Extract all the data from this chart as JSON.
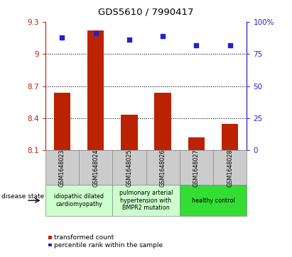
{
  "title": "GDS5610 / 7990417",
  "samples": [
    "GSM1648023",
    "GSM1648024",
    "GSM1648025",
    "GSM1648026",
    "GSM1648027",
    "GSM1648028"
  ],
  "bar_values": [
    8.64,
    9.22,
    8.43,
    8.64,
    8.22,
    8.35
  ],
  "scatter_values": [
    88,
    91,
    86,
    89,
    82,
    82
  ],
  "ylim_left": [
    8.1,
    9.3
  ],
  "ylim_right": [
    0,
    100
  ],
  "yticks_left": [
    8.1,
    8.4,
    8.7,
    9.0,
    9.3
  ],
  "ytick_labels_left": [
    "8.1",
    "8.4",
    "8.7",
    "9",
    "9.3"
  ],
  "yticks_right": [
    0,
    25,
    50,
    75,
    100
  ],
  "ytick_labels_right": [
    "0",
    "25",
    "50",
    "75",
    "100%"
  ],
  "bar_color": "#bb2200",
  "scatter_color": "#2222cc",
  "grid_yticks": [
    9.0,
    8.7,
    8.4
  ],
  "disease_groups": [
    {
      "label": "idiopathic dilated\ncardiomyopathy",
      "start": 0,
      "end": 2,
      "color": "#ccffcc"
    },
    {
      "label": "pulmonary arterial\nhypertension with\nBMPR2 mutation",
      "start": 2,
      "end": 4,
      "color": "#ccffcc"
    },
    {
      "label": "healthy control",
      "start": 4,
      "end": 6,
      "color": "#33dd33"
    }
  ],
  "legend_bar_label": "transformed count",
  "legend_scatter_label": "percentile rank within the sample",
  "disease_state_label": "disease state",
  "bar_bottom": 8.1,
  "sample_box_color": "#cccccc",
  "bar_width": 0.5
}
